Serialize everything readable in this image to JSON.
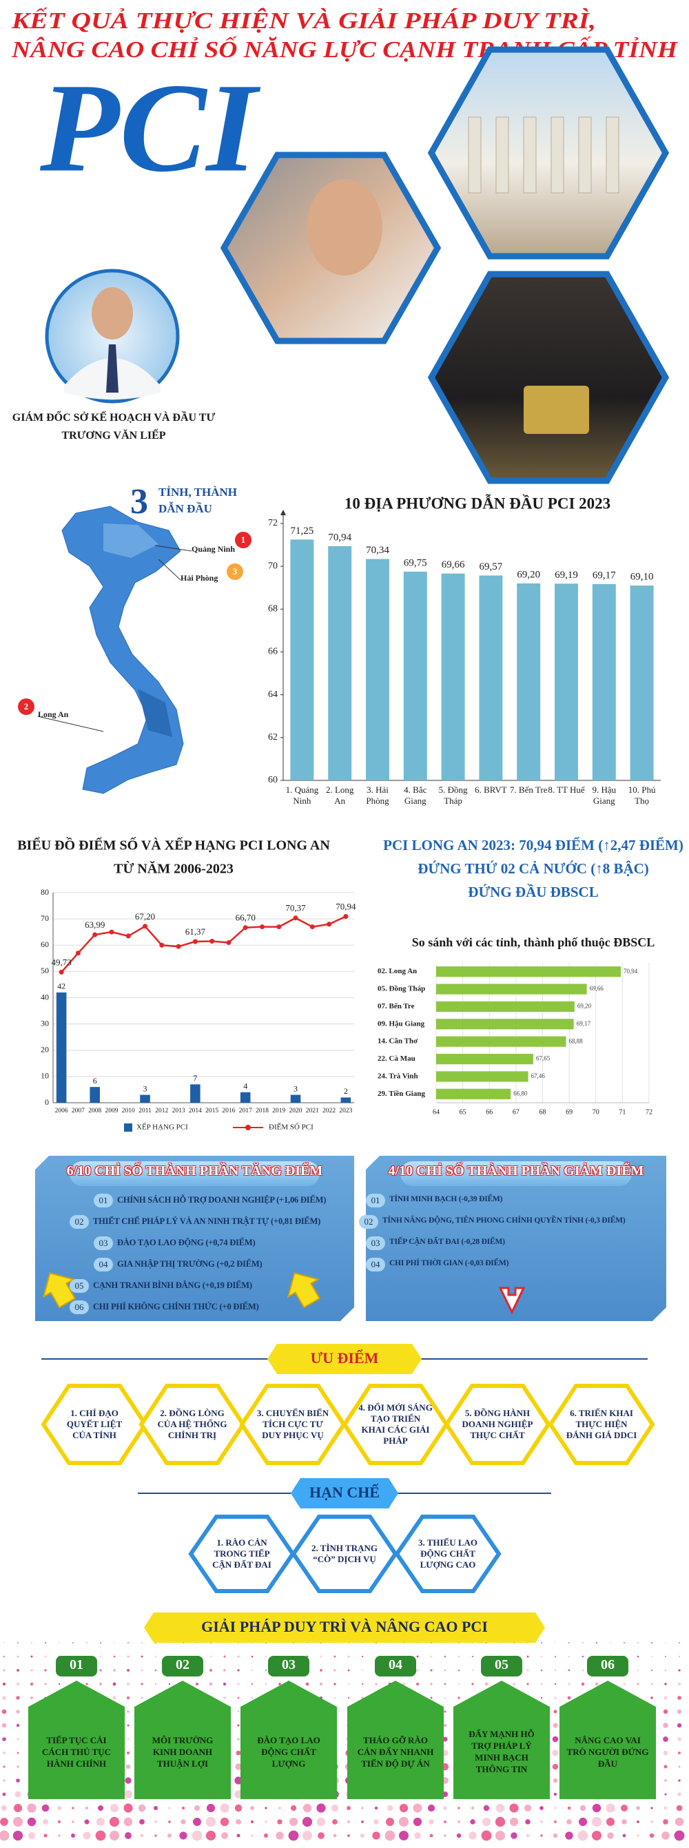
{
  "header": {
    "title": [
      "KẾT QUẢ THỰC HIỆN VÀ GIẢI PHÁP DUY TRÌ,",
      "NÂNG CAO CHỈ SỐ NĂNG LỰC CẠNH TRANH CẤP TỈNH"
    ],
    "logo": "PCI",
    "caption": [
      "GIÁM ĐỐC SỞ KẾ HOẠCH VÀ ĐẦU TƯ",
      "TRƯƠNG VĂN LIẾP"
    ]
  },
  "map": {
    "count": 3,
    "label": [
      "TỈNH, THÀNH",
      "DẪN ĐẦU"
    ],
    "markers": [
      {
        "rank": 1,
        "name": "Quảng Ninh",
        "color": "#e8262b"
      },
      {
        "rank": 3,
        "name": "Hải Phòng",
        "color": "#f7a73a"
      },
      {
        "rank": 2,
        "name": "Long An",
        "color": "#e8262b"
      }
    ]
  },
  "chart_data": [
    {
      "type": "bar",
      "title": "10 ĐỊA PHƯƠNG DẪN ĐẦU PCI 2023",
      "categories": [
        "1. Quảng Ninh",
        "2. Long An",
        "3. Hải Phòng",
        "4. Bắc Giang",
        "5. Đồng Tháp",
        "6. BRVT",
        "7. Bến Tre",
        "8. TT Huế",
        "9. Hậu Giang",
        "10. Phú Thọ"
      ],
      "values": [
        71.25,
        70.94,
        70.34,
        69.75,
        69.66,
        69.57,
        69.2,
        69.19,
        69.17,
        69.1
      ],
      "value_labels": [
        "71,25",
        "70,94",
        "70,34",
        "69,75",
        "69,66",
        "69,57",
        "69,20",
        "69,19",
        "69,17",
        "69,10"
      ],
      "color": "#72b9d4",
      "ylim": [
        60,
        72
      ],
      "yticks": [
        60,
        62,
        64,
        66,
        68,
        70,
        72
      ],
      "grid": false
    },
    {
      "type": "combo",
      "title": "BIỂU ĐỒ ĐIỂM SỐ VÀ XẾP HẠNG PCI LONG AN",
      "subtitle": "TỪ NĂM 2006-2023",
      "categories": [
        "2006",
        "2007",
        "2008",
        "2009",
        "2010",
        "2011",
        "2012",
        "2013",
        "2014",
        "2015",
        "2016",
        "2017",
        "2018",
        "2019",
        "2020",
        "2021",
        "2022",
        "2023"
      ],
      "series": [
        {
          "name": "XẾP HẠNG PCI",
          "type": "bar",
          "color": "#1f5fa8",
          "values": [
            42,
            null,
            6,
            null,
            null,
            3,
            null,
            null,
            7,
            null,
            null,
            4,
            null,
            null,
            3,
            null,
            null,
            2
          ]
        },
        {
          "name": "ĐIỂM SỐ PCI",
          "type": "line",
          "color": "#e32526",
          "values": [
            49.73,
            57,
            63.99,
            65,
            63.5,
            67.2,
            60,
            59.5,
            61.37,
            61.5,
            61,
            66.7,
            67,
            67,
            70.37,
            67,
            68,
            70.94
          ],
          "value_labels": [
            "49,73",
            null,
            "63,99",
            null,
            null,
            "67,20",
            null,
            null,
            "61,37",
            null,
            null,
            "66,70",
            null,
            null,
            "70,37",
            null,
            null,
            "70,94"
          ]
        }
      ],
      "ylim": [
        0,
        80
      ],
      "yticks": [
        0,
        10,
        20,
        30,
        40,
        50,
        60,
        70,
        80
      ],
      "grid": true
    },
    {
      "type": "hbar",
      "title": "So sánh với các tỉnh, thành phố thuộc ĐBSCL",
      "categories": [
        "02. Long An",
        "05. Đồng Tháp",
        "07. Bến Tre",
        "09. Hậu Giang",
        "14. Cần Thơ",
        "22. Cà Mau",
        "24. Trà Vinh",
        "29. Tiền Giang"
      ],
      "values": [
        70.94,
        69.66,
        69.2,
        69.17,
        68.88,
        67.65,
        67.46,
        66.8
      ],
      "value_labels": [
        "70,94",
        "69,66",
        "69,20",
        "69,17",
        "68,88",
        "67,65",
        "67,46",
        "66,80"
      ],
      "color": "#8cc63f",
      "xlim": [
        64,
        72
      ],
      "xticks": [
        64,
        65,
        66,
        67,
        68,
        69,
        70,
        71,
        72
      ],
      "grid": true
    }
  ],
  "summary": [
    "PCI LONG AN 2023: 70,94 ĐIỂM (↑2,47 ĐIỂM)",
    "ĐỨNG THỨ 02 CẢ NƯỚC (↑8 BẬC)",
    "ĐỨNG ĐẦU ĐBSCL"
  ],
  "increase": {
    "title": "6/10 CHỈ SỐ THÀNH PHẦN TĂNG ĐIỂM",
    "items": [
      {
        "no": "01",
        "text": "CHÍNH SÁCH HỖ TRỢ DOANH NGHIỆP (+1,06 ĐIỂM)"
      },
      {
        "no": "02",
        "text": "THIẾT CHẾ PHÁP LÝ VÀ AN NINH TRẬT TỰ (+0,81 ĐIỂM)"
      },
      {
        "no": "03",
        "text": "ĐÀO TẠO LAO ĐỘNG (+0,74 ĐIỂM)"
      },
      {
        "no": "04",
        "text": "GIA NHẬP THỊ TRƯỜNG (+0,2 ĐIỂM)"
      },
      {
        "no": "05",
        "text": "CẠNH TRANH BÌNH ĐẲNG (+0,19 ĐIỂM)"
      },
      {
        "no": "06",
        "text": "CHI PHÍ KHÔNG CHÍNH THỨC (+0 ĐIỂM)"
      }
    ]
  },
  "decrease": {
    "title": "4/10 CHỈ SỐ THÀNH PHẦN GIẢM ĐIỂM",
    "items": [
      {
        "no": "01",
        "text": "TÍNH MINH BẠCH (-0,39 ĐIỂM)"
      },
      {
        "no": "02",
        "text": "TÍNH NĂNG ĐỘNG, TIÊN PHONG CHÍNH QUYỀN TỈNH (-0,3 ĐIỂM)"
      },
      {
        "no": "03",
        "text": "TIẾP CẬN ĐẤT ĐAI (-0,28 ĐIỂM)"
      },
      {
        "no": "04",
        "text": "CHI PHÍ THỜI GIAN (-0,03 ĐIỂM)"
      }
    ]
  },
  "strengths": {
    "title": "ƯU ĐIỂM",
    "items": [
      "1. CHỈ ĐẠO QUYẾT LIỆT CỦA TỈNH",
      "2. ĐỒNG LÒNG CỦA HỆ THỐNG CHÍNH TRỊ",
      "3. CHUYỂN BIẾN TÍCH CỰC TƯ DUY PHỤC VỤ",
      "4. ĐỔI MỚI SÁNG TẠO TRIỂN KHAI CÁC GIẢI PHÁP",
      "5. ĐỒNG HÀNH DOANH NGHIỆP THỰC CHẤT",
      "6. TRIỂN KHAI THỰC HIỆN ĐÁNH GIÁ DDCI"
    ]
  },
  "limitations": {
    "title": "HẠN CHẾ",
    "items": [
      "1. RÀO CẢN TRONG TIẾP CẬN ĐẤT ĐAI",
      "2. TÌNH TRẠNG “CÒ” DỊCH VỤ",
      "3. THIẾU LAO ĐỘNG CHẤT LƯỢNG CAO"
    ]
  },
  "solutions": {
    "title": "GIẢI PHÁP DUY TRÌ VÀ NÂNG CAO PCI",
    "items": [
      {
        "no": "01",
        "text": "TIẾP TỤC CẢI CÁCH THỦ TỤC HÀNH CHÍNH"
      },
      {
        "no": "02",
        "text": "MÔI TRƯỜNG KINH DOANH THUẬN LỢI"
      },
      {
        "no": "03",
        "text": "ĐÀO TẠO LAO ĐỘNG CHẤT LƯỢNG"
      },
      {
        "no": "04",
        "text": "THÁO GỠ RÀO CẢN ĐẨY NHANH TIẾN ĐỘ DỰ ÁN"
      },
      {
        "no": "05",
        "text": "ĐẨY MẠNH HỖ TRỢ PHÁP LÝ MINH BẠCH THÔNG TIN"
      },
      {
        "no": "06",
        "text": "NÂNG CAO VAI TRÒ NGƯỜI ĐỨNG ĐẦU"
      }
    ]
  }
}
